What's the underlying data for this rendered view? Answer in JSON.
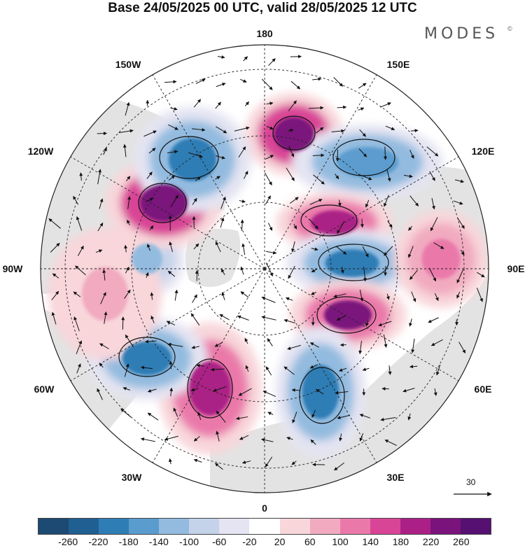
{
  "title": "Base 24/05/2025 00 UTC, valid 28/05/2025 12 UTC",
  "brand": {
    "name": "MODES",
    "mark": "©"
  },
  "map": {
    "projection": "north polar stereographic",
    "longitude_labels": [
      {
        "text": "180",
        "lon": 180
      },
      {
        "text": "150E",
        "lon": 150
      },
      {
        "text": "120E",
        "lon": 120
      },
      {
        "text": "90E",
        "lon": 90
      },
      {
        "text": "60E",
        "lon": 60
      },
      {
        "text": "30E",
        "lon": 30
      },
      {
        "text": "0",
        "lon": 0
      },
      {
        "text": "30W",
        "lon": -30
      },
      {
        "text": "60W",
        "lon": -60
      },
      {
        "text": "90W",
        "lon": -90
      },
      {
        "text": "120W",
        "lon": -120
      },
      {
        "text": "150W",
        "lon": -150
      }
    ],
    "reference_vector": {
      "label": "30"
    },
    "colors": {
      "negative_max": "#15466f",
      "positive_max": "#5d0f6e",
      "land": "#e2e2e2",
      "ocean": "#ffffff"
    },
    "anomaly_centers": [
      {
        "name": "pos-150e",
        "sign": "positive",
        "value": 240
      },
      {
        "name": "neg-135e",
        "sign": "negative",
        "value": -180
      },
      {
        "name": "pos-105e",
        "sign": "positive",
        "value": 180
      },
      {
        "name": "neg-90e",
        "sign": "negative",
        "value": -220
      },
      {
        "name": "pos-75e",
        "sign": "positive",
        "value": 220
      },
      {
        "name": "pos-95e-outer",
        "sign": "positive",
        "value": 100
      },
      {
        "name": "neg-20e",
        "sign": "negative",
        "value": -200
      },
      {
        "name": "pos-20w",
        "sign": "positive",
        "value": 180
      },
      {
        "name": "neg-60w",
        "sign": "negative",
        "value": -200
      },
      {
        "name": "neg-90w",
        "sign": "negative",
        "value": -140
      },
      {
        "name": "pos-110w",
        "sign": "positive",
        "value": 240
      },
      {
        "name": "neg-145w",
        "sign": "negative",
        "value": -220
      },
      {
        "name": "pos-100w-outer",
        "sign": "positive",
        "value": 60
      }
    ]
  },
  "colorbar": {
    "ticks": [
      "-260",
      "-220",
      "-180",
      "-140",
      "-100",
      "-60",
      "-20",
      "20",
      "60",
      "100",
      "140",
      "180",
      "220",
      "260"
    ],
    "colors": [
      "#1c4a72",
      "#205f91",
      "#2f7db5",
      "#5b9ccf",
      "#93bbdf",
      "#c4d3ea",
      "#e4e4f2",
      "#ffffff",
      "#f8d6da",
      "#f1aac0",
      "#ea79aa",
      "#d94596",
      "#ab2086",
      "#7a137c",
      "#551071"
    ]
  }
}
